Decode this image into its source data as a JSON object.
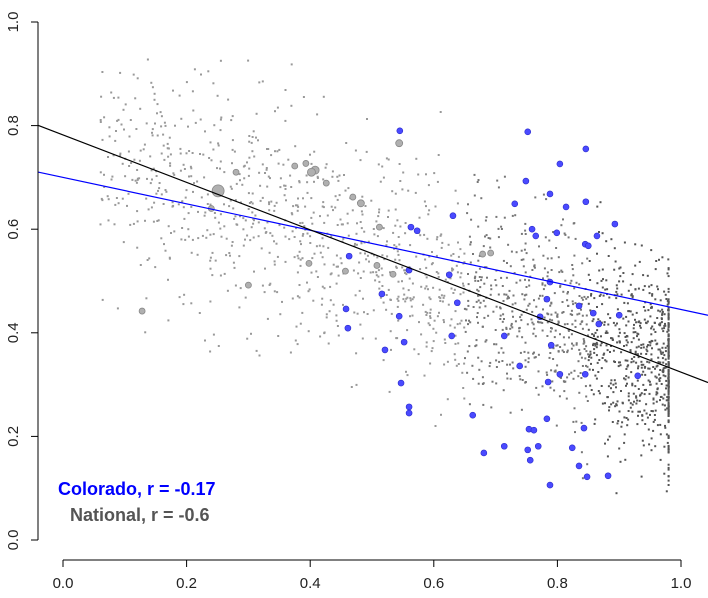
{
  "chart_data": {
    "type": "scatter",
    "title": "",
    "xlabel": "",
    "ylabel": "",
    "xlim": [
      0,
      1
    ],
    "ylim": [
      0,
      1
    ],
    "x_ticks": [
      "0.0",
      "0.2",
      "0.4",
      "0.6",
      "0.8",
      "1.0"
    ],
    "y_ticks": [
      "0.0",
      "0.2",
      "0.4",
      "0.6",
      "0.8",
      "1.0"
    ],
    "grid": false,
    "legend": {
      "placement": "bottom-left",
      "entries": [
        {
          "label": "Colorado, r = -0.17",
          "color": "#0000ff"
        },
        {
          "label": "National, r = -0.6",
          "color": "#555555"
        }
      ]
    },
    "fit_lines": [
      {
        "name": "Colorado fit",
        "intercept": 0.7,
        "slope": -0.255,
        "color": "#0000ff"
      },
      {
        "name": "National fit",
        "intercept": 0.782,
        "slope": -0.458,
        "color": "#000000"
      }
    ],
    "series": [
      {
        "name": "Colorado",
        "color": "#4a4aff",
        "points": [
          [
            0.545,
            0.79
          ],
          [
            0.631,
            0.626
          ],
          [
            0.563,
            0.604
          ],
          [
            0.573,
            0.597
          ],
          [
            0.463,
            0.548
          ],
          [
            0.56,
            0.521
          ],
          [
            0.625,
            0.512
          ],
          [
            0.516,
            0.475
          ],
          [
            0.638,
            0.458
          ],
          [
            0.458,
            0.446
          ],
          [
            0.544,
            0.432
          ],
          [
            0.461,
            0.409
          ],
          [
            0.629,
            0.394
          ],
          [
            0.552,
            0.382
          ],
          [
            0.521,
            0.367
          ],
          [
            0.547,
            0.303
          ],
          [
            0.56,
            0.257
          ],
          [
            0.56,
            0.245
          ],
          [
            0.663,
            0.241
          ],
          [
            0.752,
            0.788
          ],
          [
            0.846,
            0.755
          ],
          [
            0.804,
            0.726
          ],
          [
            0.749,
            0.693
          ],
          [
            0.788,
            0.668
          ],
          [
            0.731,
            0.649
          ],
          [
            0.846,
            0.653
          ],
          [
            0.814,
            0.643
          ],
          [
            0.759,
            0.6
          ],
          [
            0.765,
            0.587
          ],
          [
            0.799,
            0.593
          ],
          [
            0.893,
            0.61
          ],
          [
            0.864,
            0.587
          ],
          [
            0.845,
            0.571
          ],
          [
            0.85,
            0.568
          ],
          [
            0.788,
            0.498
          ],
          [
            0.783,
            0.465
          ],
          [
            0.835,
            0.452
          ],
          [
            0.858,
            0.438
          ],
          [
            0.9,
            0.434
          ],
          [
            0.772,
            0.431
          ],
          [
            0.867,
            0.417
          ],
          [
            0.714,
            0.394
          ],
          [
            0.79,
            0.376
          ],
          [
            0.739,
            0.336
          ],
          [
            0.804,
            0.32
          ],
          [
            0.845,
            0.32
          ],
          [
            0.93,
            0.317
          ],
          [
            0.785,
            0.305
          ],
          [
            0.783,
            0.234
          ],
          [
            0.843,
            0.216
          ],
          [
            0.754,
            0.214
          ],
          [
            0.762,
            0.212
          ],
          [
            0.714,
            0.181
          ],
          [
            0.769,
            0.181
          ],
          [
            0.824,
            0.178
          ],
          [
            0.752,
            0.174
          ],
          [
            0.756,
            0.154
          ],
          [
            0.835,
            0.143
          ],
          [
            0.848,
            0.122
          ],
          [
            0.882,
            0.124
          ],
          [
            0.788,
            0.106
          ],
          [
            0.681,
            0.168
          ]
        ]
      },
      {
        "name": "National",
        "color": "#808080",
        "large_points": [
          [
            0.251,
            0.674,
            6
          ],
          [
            0.408,
            0.714,
            4
          ],
          [
            0.402,
            0.71,
            4
          ],
          [
            0.544,
            0.766,
            3.5
          ],
          [
            0.482,
            0.65,
            3.5
          ],
          [
            0.393,
            0.727,
            3
          ],
          [
            0.375,
            0.722,
            3
          ],
          [
            0.426,
            0.689,
            3
          ],
          [
            0.469,
            0.662,
            3
          ],
          [
            0.512,
            0.604,
            3
          ],
          [
            0.398,
            0.534,
            3
          ],
          [
            0.508,
            0.53,
            3
          ],
          [
            0.457,
            0.519,
            3
          ],
          [
            0.534,
            0.513,
            3
          ],
          [
            0.679,
            0.552,
            3
          ],
          [
            0.692,
            0.554,
            3
          ],
          [
            0.128,
            0.442,
            3
          ],
          [
            0.3,
            0.492,
            3
          ],
          [
            0.24,
            0.64,
            3
          ],
          [
            0.28,
            0.71,
            3
          ]
        ],
        "sample": {
          "n": 2000,
          "seed": 7,
          "intercept": 0.782,
          "slope": -0.458
        }
      }
    ]
  }
}
